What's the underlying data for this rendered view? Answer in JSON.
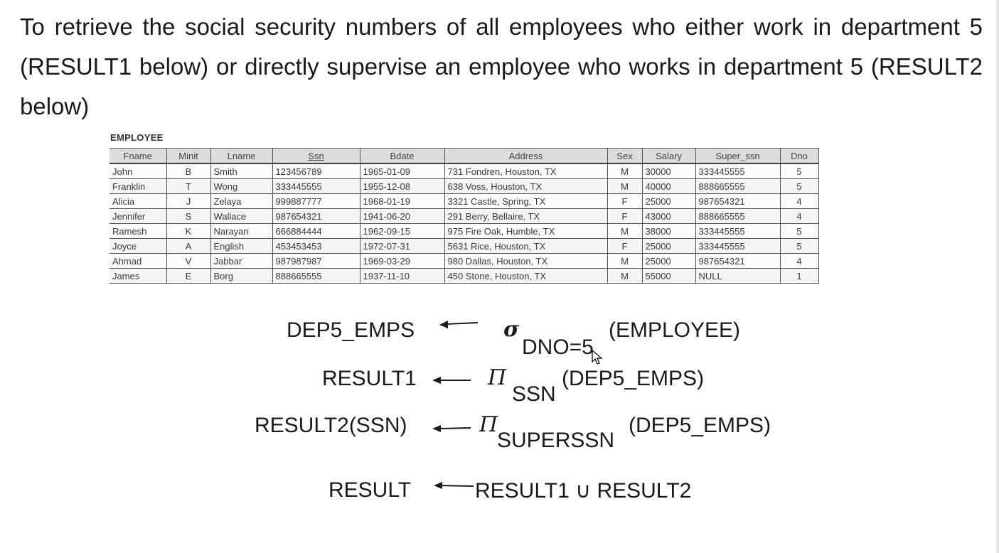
{
  "intro": {
    "text": "To retrieve the social security numbers of all employees who either work in department 5 (RESULT1 below) or directly supervise an employee who works in department 5 (RESULT2 below)"
  },
  "employee_table": {
    "caption": "EMPLOYEE",
    "headers": [
      "Fname",
      "Minit",
      "Lname",
      "Ssn",
      "Bdate",
      "Address",
      "Sex",
      "Salary",
      "Super_ssn",
      "Dno"
    ],
    "rows": [
      [
        "John",
        "B",
        "Smith",
        "123456789",
        "1965-01-09",
        "731 Fondren, Houston, TX",
        "M",
        "30000",
        "333445555",
        "5"
      ],
      [
        "Franklin",
        "T",
        "Wong",
        "333445555",
        "1955-12-08",
        "638 Voss, Houston, TX",
        "M",
        "40000",
        "888665555",
        "5"
      ],
      [
        "Alicia",
        "J",
        "Zelaya",
        "999887777",
        "1968-01-19",
        "3321 Castle, Spring, TX",
        "F",
        "25000",
        "987654321",
        "4"
      ],
      [
        "Jennifer",
        "S",
        "Wallace",
        "987654321",
        "1941-06-20",
        "291 Berry, Bellaire, TX",
        "F",
        "43000",
        "888665555",
        "4"
      ],
      [
        "Ramesh",
        "K",
        "Narayan",
        "666884444",
        "1962-09-15",
        "975 Fire Oak, Humble, TX",
        "M",
        "38000",
        "333445555",
        "5"
      ],
      [
        "Joyce",
        "A",
        "English",
        "453453453",
        "1972-07-31",
        "5631 Rice, Houston, TX",
        "F",
        "25000",
        "333445555",
        "5"
      ],
      [
        "Ahmad",
        "V",
        "Jabbar",
        "987987987",
        "1969-03-29",
        "980 Dallas, Houston, TX",
        "M",
        "25000",
        "987654321",
        "4"
      ],
      [
        "James",
        "E",
        "Borg",
        "888665555",
        "1937-11-10",
        "450 Stone, Houston, TX",
        "M",
        "55000",
        "NULL",
        "1"
      ]
    ]
  },
  "algebra": {
    "line1": {
      "lhs": "DEP5_EMPS",
      "op": "σ",
      "sub": "DNO=5",
      "rhs": "(EMPLOYEE)"
    },
    "line2": {
      "lhs": "RESULT1",
      "op": "Π",
      "sub": "SSN",
      "rhs": "(DEP5_EMPS)"
    },
    "line3": {
      "lhs": "RESULT2(SSN)",
      "op": "Π",
      "sub": "SUPERSSN",
      "rhs": "(DEP5_EMPS)"
    },
    "line4": {
      "lhs": "RESULT",
      "rhs": "RESULT1 ∪ RESULT2"
    }
  },
  "colors": {
    "text": "#1a1a1a",
    "table_header_bg": "#dcdcdc",
    "table_border": "#555555"
  }
}
